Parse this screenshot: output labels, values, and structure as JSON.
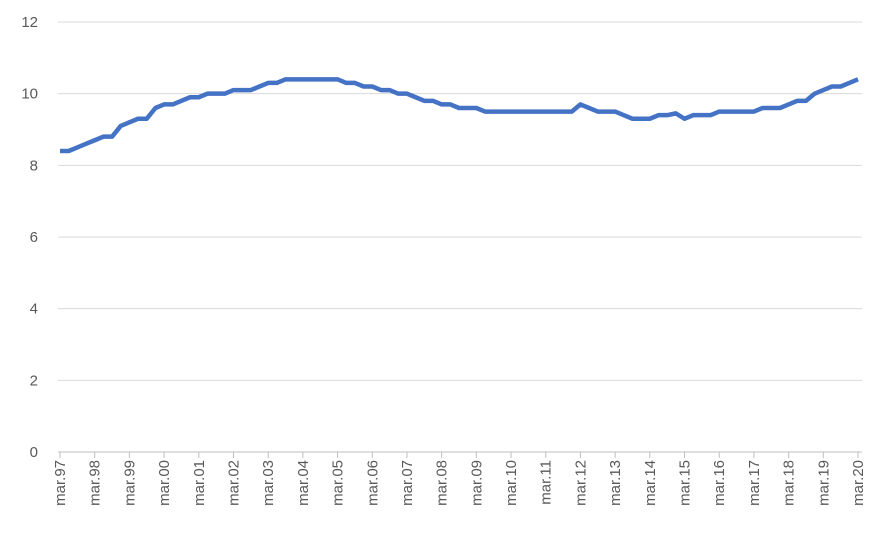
{
  "chart_data": {
    "type": "line",
    "categories": [
      "mar.97",
      null,
      null,
      null,
      "mar.98",
      null,
      null,
      null,
      "mar.99",
      null,
      null,
      null,
      "mar.00",
      null,
      null,
      null,
      "mar.01",
      null,
      null,
      null,
      "mar.02",
      null,
      null,
      null,
      "mar.03",
      null,
      null,
      null,
      "mar.04",
      null,
      null,
      null,
      "mar.05",
      null,
      null,
      null,
      "mar.06",
      null,
      null,
      null,
      "mar.07",
      null,
      null,
      null,
      "mar.08",
      null,
      null,
      null,
      "mar.09",
      null,
      null,
      null,
      "mar.10",
      null,
      null,
      null,
      "mar.11",
      null,
      null,
      null,
      "mar.12",
      null,
      null,
      null,
      "mar.13",
      null,
      null,
      null,
      "mar.14",
      null,
      null,
      null,
      "mar.15",
      null,
      null,
      null,
      "mar.16",
      null,
      null,
      null,
      "mar.17",
      null,
      null,
      null,
      "mar.18",
      null,
      null,
      null,
      "mar.19",
      null,
      null,
      null,
      "mar.20"
    ],
    "series": [
      {
        "color": "#4472c4",
        "values": [
          8.4,
          8.4,
          8.5,
          8.6,
          8.7,
          8.8,
          8.8,
          9.1,
          9.2,
          9.3,
          9.3,
          9.6,
          9.7,
          9.7,
          9.8,
          9.9,
          9.9,
          10.0,
          10.0,
          10.0,
          10.1,
          10.1,
          10.1,
          10.2,
          10.3,
          10.3,
          10.4,
          10.4,
          10.4,
          10.4,
          10.4,
          10.4,
          10.4,
          10.3,
          10.3,
          10.2,
          10.2,
          10.1,
          10.1,
          10.0,
          10.0,
          9.9,
          9.8,
          9.8,
          9.7,
          9.7,
          9.6,
          9.6,
          9.6,
          9.5,
          9.5,
          9.5,
          9.5,
          9.5,
          9.5,
          9.5,
          9.5,
          9.5,
          9.5,
          9.5,
          9.7,
          9.6,
          9.5,
          9.5,
          9.5,
          9.4,
          9.3,
          9.3,
          9.3,
          9.4,
          9.4,
          9.45,
          9.3,
          9.4,
          9.4,
          9.4,
          9.5,
          9.5,
          9.5,
          9.5,
          9.5,
          9.6,
          9.6,
          9.6,
          9.7,
          9.8,
          9.8,
          10.0,
          10.1,
          10.2,
          10.2,
          10.3,
          10.4
        ]
      }
    ],
    "ylim": [
      0,
      12
    ],
    "yticks": [
      0,
      2,
      4,
      6,
      8,
      10,
      12
    ],
    "grid": true
  }
}
